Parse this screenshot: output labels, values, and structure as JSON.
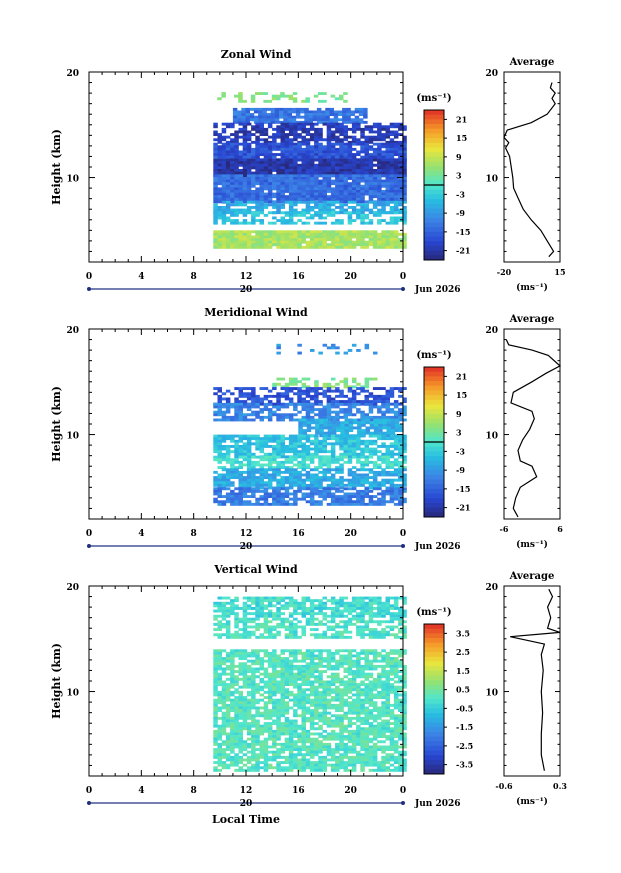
{
  "chart_data": [
    {
      "type": "heatmap",
      "title": "Zonal Wind",
      "ylabel": "Height (km)",
      "ylim": [
        2,
        20
      ],
      "y_ticks": [
        20,
        10
      ],
      "x_ticks": [
        "0",
        "4",
        "8",
        "12",
        "16",
        "20",
        "0"
      ],
      "xlim": [
        0,
        24
      ],
      "date_day": "20",
      "date_label": "Jun 2026",
      "unit": "(ms⁻¹)",
      "colorbar": {
        "ticks": [
          "21",
          "15",
          "9",
          "3",
          "-3",
          "-9",
          "-15",
          "-21"
        ],
        "range": [
          -24,
          24
        ]
      },
      "data_time_range": [
        9.5,
        24
      ],
      "layers": [
        {
          "z": [
            17.3,
            18.1
          ],
          "value": 4,
          "coverage": 0.35,
          "x": [
            9.8,
            20
          ]
        },
        {
          "z": [
            15.2,
            16.6
          ],
          "value": -13,
          "coverage": 0.85,
          "x": [
            11,
            21
          ]
        },
        {
          "z": [
            13.3,
            15.2
          ],
          "value": -20,
          "coverage": 0.7
        },
        {
          "z": [
            11.8,
            13.3
          ],
          "value": -17,
          "coverage": 0.9
        },
        {
          "z": [
            10.3,
            11.8
          ],
          "value": -21,
          "coverage": 0.98
        },
        {
          "z": [
            7.8,
            10.3
          ],
          "value": -14,
          "coverage": 0.96
        },
        {
          "z": [
            6.8,
            7.8
          ],
          "value": -7,
          "coverage": 0.7
        },
        {
          "z": [
            5.8,
            6.8
          ],
          "value": -4,
          "coverage": 0.6
        },
        {
          "z": [
            3.3,
            5.0
          ],
          "value": 7,
          "coverage": 0.95
        }
      ],
      "profile": {
        "title": "Average",
        "xlabel": "(ms⁻¹)",
        "x_ticks": [
          "-20",
          "15"
        ],
        "xlim": [
          -20,
          15
        ],
        "z": [
          2.5,
          3.0,
          4.0,
          5.0,
          6.0,
          7.0,
          8.0,
          9.0,
          10.0,
          11.0,
          12.0,
          12.8,
          13.3,
          13.8,
          14.5,
          15.2,
          16.0,
          17.0,
          17.5,
          18.0,
          18.5,
          19.0
        ],
        "value": [
          8.0,
          11.0,
          7.0,
          3.0,
          -3.0,
          -8.0,
          -11.0,
          -14.0,
          -14.5,
          -15.5,
          -16.5,
          -19.0,
          -17.0,
          -20.0,
          -18.0,
          -3.0,
          7.0,
          12.0,
          10.0,
          12.0,
          9.0,
          10.0
        ]
      }
    },
    {
      "type": "heatmap",
      "title": "Meridional Wind",
      "ylabel": "Height (km)",
      "ylim": [
        2,
        20
      ],
      "y_ticks": [
        20,
        10
      ],
      "x_ticks": [
        "0",
        "4",
        "8",
        "12",
        "16",
        "20",
        "0"
      ],
      "xlim": [
        0,
        24
      ],
      "date_day": "20",
      "date_label": "Jun 2026",
      "unit": "(ms⁻¹)",
      "colorbar": {
        "ticks": [
          "21",
          "15",
          "9",
          "3",
          "-3",
          "-9",
          "-15",
          "-21"
        ],
        "range": [
          -24,
          24
        ]
      },
      "data_time_range": [
        9.5,
        24
      ],
      "layers": [
        {
          "z": [
            17.7,
            18.6
          ],
          "value": -10,
          "coverage": 0.25,
          "x": [
            14,
            22
          ]
        },
        {
          "z": [
            14.6,
            15.4
          ],
          "value": 4,
          "coverage": 0.45,
          "x": [
            14,
            22
          ]
        },
        {
          "z": [
            13.0,
            14.5
          ],
          "value": -17,
          "coverage": 0.6
        },
        {
          "z": [
            11.5,
            13.0
          ],
          "value": -11,
          "coverage": 0.75
        },
        {
          "z": [
            10.0,
            11.5
          ],
          "value": -7,
          "coverage": 0.85,
          "x": [
            16,
            24
          ]
        },
        {
          "z": [
            8.0,
            10.0
          ],
          "value": -4,
          "coverage": 0.75
        },
        {
          "z": [
            6.8,
            8.0
          ],
          "value": -1,
          "coverage": 0.7
        },
        {
          "z": [
            5.0,
            6.8
          ],
          "value": -7,
          "coverage": 0.8
        },
        {
          "z": [
            3.3,
            5.0
          ],
          "value": -12,
          "coverage": 0.75
        }
      ],
      "profile": {
        "title": "Average",
        "xlabel": "(ms⁻¹)",
        "x_ticks": [
          "-6",
          "6"
        ],
        "xlim": [
          -6,
          6
        ],
        "z": [
          2.2,
          3.0,
          4.0,
          5.0,
          6.0,
          7.0,
          7.5,
          8.5,
          9.5,
          10.5,
          11.5,
          12.2,
          13.0,
          14.0,
          15.0,
          15.8,
          16.5,
          17.5,
          18.0,
          18.5,
          19.0
        ],
        "value": [
          -3.0,
          -4.0,
          -3.5,
          -2.5,
          1.0,
          0.0,
          -2.5,
          -3.0,
          -2.0,
          -0.5,
          0.5,
          0.0,
          -4.5,
          -4.0,
          0.0,
          3.0,
          6.0,
          3.5,
          0.0,
          -5.0,
          -5.5
        ]
      }
    },
    {
      "type": "heatmap",
      "title": "Vertical Wind",
      "ylabel": "Height (km)",
      "xlabel": "Local Time",
      "ylim": [
        2,
        20
      ],
      "y_ticks": [
        20,
        10
      ],
      "x_ticks": [
        "0",
        "4",
        "8",
        "12",
        "16",
        "20",
        "0"
      ],
      "xlim": [
        0,
        24
      ],
      "date_day": "20",
      "date_label": "Jun 2026",
      "unit": "(ms⁻¹)",
      "colorbar": {
        "ticks": [
          "3.5",
          "2.5",
          "1.5",
          "0.5",
          "-0.5",
          "-1.5",
          "-2.5",
          "-3.5"
        ],
        "range": [
          -4,
          4
        ]
      },
      "data_time_range": [
        9.5,
        24
      ],
      "layers": [
        {
          "z": [
            17.2,
            19.0
          ],
          "value": -0.2,
          "coverage": 0.75
        },
        {
          "z": [
            15.2,
            17.0
          ],
          "value": 0.0,
          "coverage": 0.6
        },
        {
          "z": [
            2.5,
            14.0
          ],
          "value": 0.1,
          "coverage": 0.8
        }
      ],
      "profile": {
        "title": "Average",
        "xlabel": "(ms⁻¹)",
        "x_ticks": [
          "-0.6",
          "0.3"
        ],
        "xlim": [
          -0.6,
          0.3
        ],
        "z": [
          2.5,
          4.0,
          6.0,
          8.0,
          10.0,
          12.0,
          13.5,
          14.5,
          15.2,
          15.6,
          16.0,
          17.0,
          18.0,
          19.0,
          19.7
        ],
        "value": [
          0.05,
          0.0,
          0.0,
          0.02,
          0.0,
          0.03,
          0.0,
          0.05,
          -0.5,
          0.3,
          0.1,
          0.15,
          0.1,
          0.18,
          0.12
        ]
      }
    }
  ]
}
